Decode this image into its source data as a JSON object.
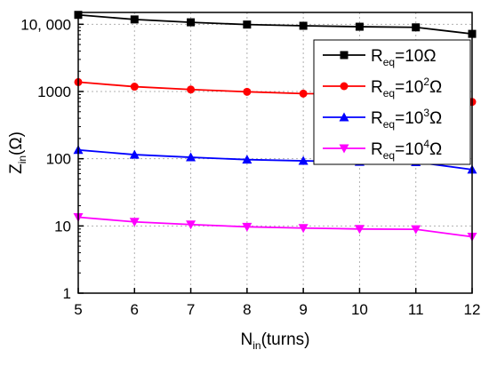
{
  "chart_data": {
    "type": "line",
    "x": [
      5,
      6,
      7,
      8,
      9,
      10,
      11,
      12
    ],
    "xlim": [
      5,
      12
    ],
    "ylim": [
      1,
      15000
    ],
    "yscale": "log",
    "grid": true,
    "legend_position": "top-right",
    "xlabel": {
      "main": "N",
      "sub": "in",
      "rest": "(turns)"
    },
    "ylabel": {
      "main": "Z",
      "sub": "in",
      "rest": "(Ω)"
    },
    "xticks": [
      "5",
      "6",
      "7",
      "8",
      "9",
      "10",
      "11",
      "12"
    ],
    "yticks": [
      {
        "value": 10000,
        "label": "10, 000"
      },
      {
        "value": 1000,
        "label": "1000"
      },
      {
        "value": 100,
        "label": "100"
      },
      {
        "value": 10,
        "label": "10"
      },
      {
        "value": 1,
        "label": "1"
      }
    ],
    "series": [
      {
        "name": "Req=10Ω",
        "legend": {
          "main": "R",
          "sub": "eq",
          "value": "=10",
          "sup": "",
          "unit": "Ω"
        },
        "color": "#000000",
        "marker": "square",
        "values": [
          13800,
          11800,
          10700,
          9900,
          9500,
          9200,
          9000,
          7200
        ]
      },
      {
        "name": "Req=10²Ω",
        "legend": {
          "main": "R",
          "sub": "eq",
          "value": "=10",
          "sup": "2",
          "unit": "Ω"
        },
        "color": "#ff0000",
        "marker": "circle",
        "values": [
          1380,
          1180,
          1070,
          990,
          930,
          920,
          900,
          700
        ]
      },
      {
        "name": "Req=10³Ω",
        "legend": {
          "main": "R",
          "sub": "eq",
          "value": "=10",
          "sup": "3",
          "unit": "Ω"
        },
        "color": "#0000ff",
        "marker": "triangle-up",
        "values": [
          135,
          115,
          105,
          97,
          93,
          90,
          89,
          69
        ]
      },
      {
        "name": "Req=10⁴Ω",
        "legend": {
          "main": "R",
          "sub": "eq",
          "value": "=10",
          "sup": "4",
          "unit": "Ω"
        },
        "color": "#ff00ff",
        "marker": "triangle-down",
        "values": [
          13.5,
          11.5,
          10.5,
          9.7,
          9.3,
          9.0,
          8.9,
          6.9
        ]
      }
    ]
  }
}
